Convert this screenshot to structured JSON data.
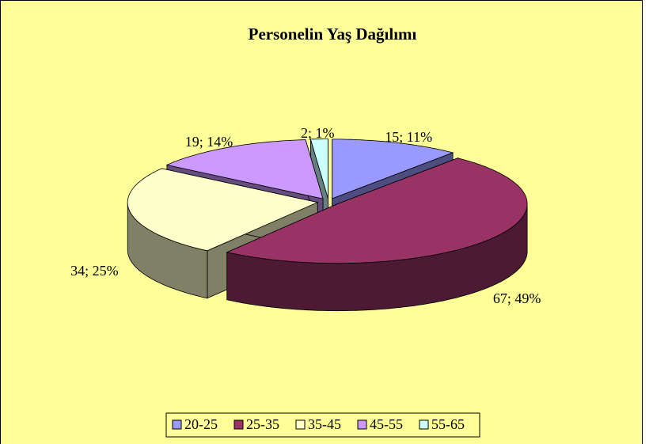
{
  "chart_data": {
    "type": "pie3d",
    "title": "Personelin Yaş Dağılımı",
    "categories": [
      "20-25",
      "25-35",
      "35-45",
      "45-55",
      "55-65"
    ],
    "values": [
      15,
      67,
      34,
      19,
      2
    ],
    "value_labels": [
      "15; 11%",
      "67; 49%",
      "34; 25%",
      "19; 14%",
      "2; 1%"
    ],
    "colors": [
      "#9999ff",
      "#993366",
      "#ffffcc",
      "#cc99ff",
      "#ccffff"
    ],
    "legend": "bottom"
  }
}
